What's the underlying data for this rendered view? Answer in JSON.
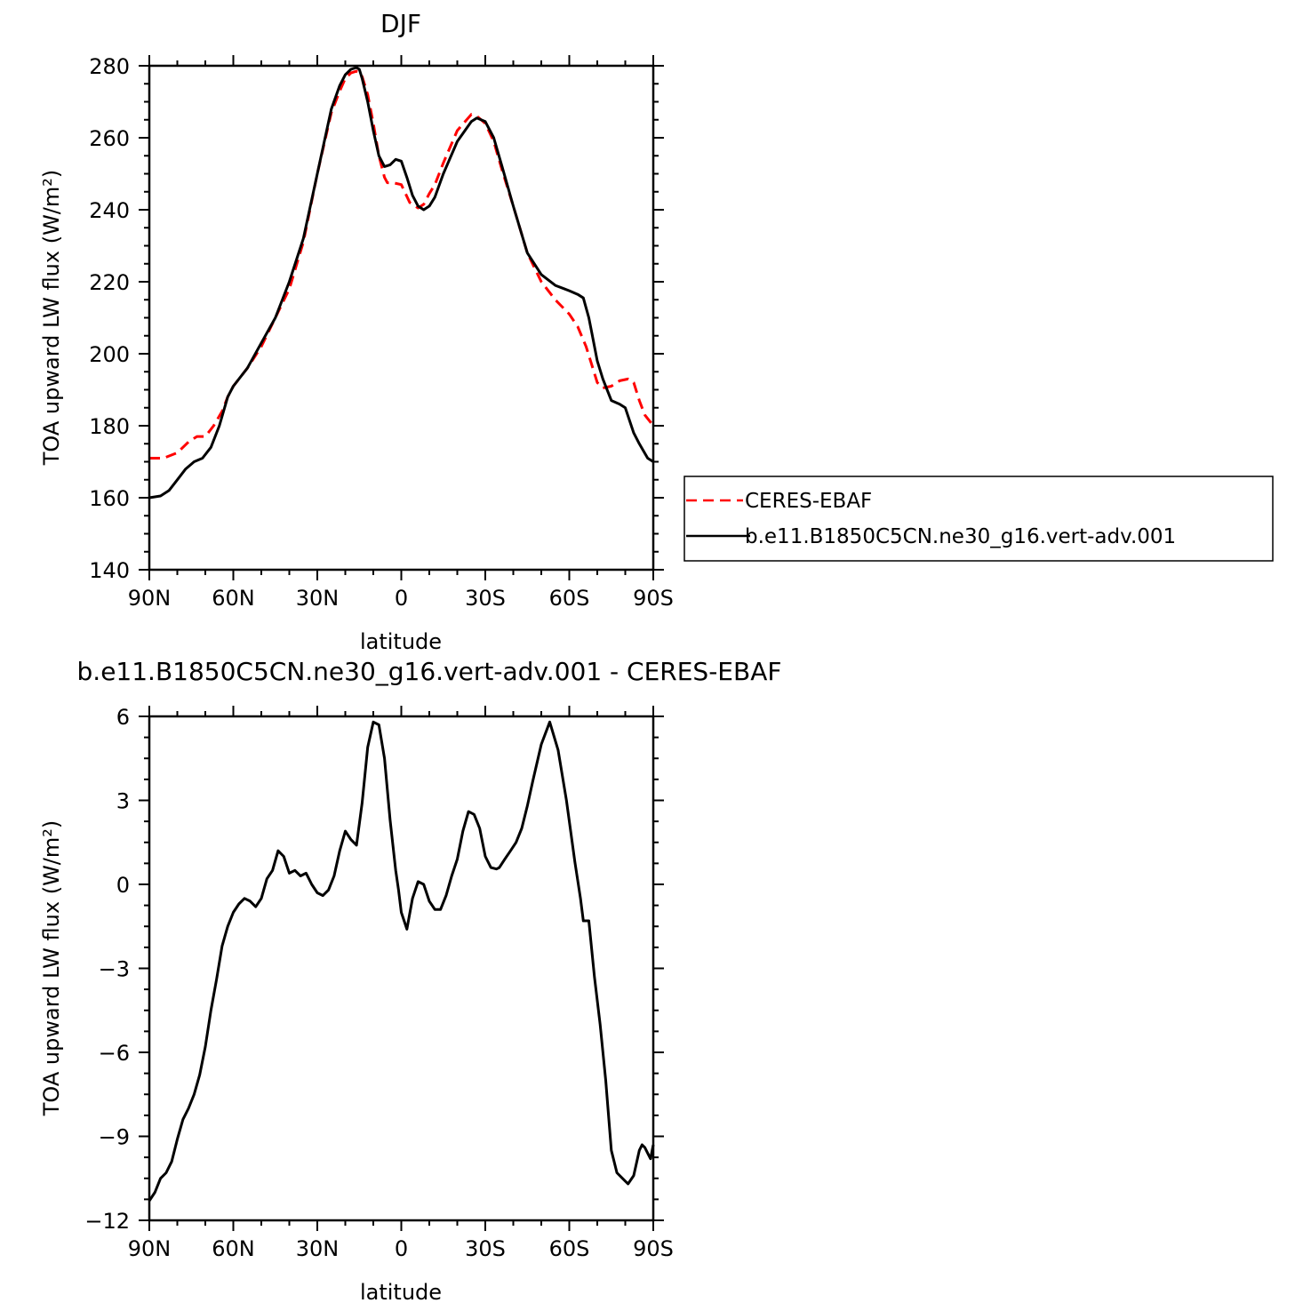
{
  "chart_data": [
    {
      "type": "line",
      "title": "DJF",
      "xlabel": "latitude",
      "ylabel": "TOA upward LW flux (W/m²)",
      "xlim": [
        90,
        -90
      ],
      "ylim": [
        140,
        280
      ],
      "x_ticks": [
        90,
        60,
        30,
        0,
        -30,
        -60,
        -90
      ],
      "x_tick_labels": [
        "90N",
        "60N",
        "30N",
        "0",
        "30S",
        "60S",
        "90S"
      ],
      "y_ticks": [
        140,
        160,
        180,
        200,
        220,
        240,
        260,
        280
      ],
      "y_tick_labels": [
        "140",
        "160",
        "180",
        "200",
        "220",
        "240",
        "260",
        "280"
      ],
      "grid": false,
      "legend": "right, outside plot",
      "series": [
        {
          "name": "CERES-EBAF",
          "color": "#ff0000",
          "dash": "dashed",
          "x": [
            90,
            85,
            80,
            76,
            73,
            70,
            67,
            64,
            62,
            60,
            55,
            50,
            45,
            40,
            35,
            30,
            25,
            22,
            20,
            18,
            16,
            15,
            14,
            12,
            10,
            8,
            6,
            5,
            3,
            0,
            -3,
            -6,
            -8,
            -10,
            -12,
            -15,
            -20,
            -25,
            -27,
            -30,
            -33,
            -36,
            -40,
            -45,
            -50,
            -55,
            -60,
            -63,
            -66,
            -68,
            -70,
            -72,
            -75,
            -78,
            -81,
            -83,
            -85,
            -87,
            -90
          ],
          "values": [
            171,
            171,
            172.5,
            175.5,
            177,
            177,
            180,
            184,
            188,
            191,
            196,
            202,
            210,
            218,
            231,
            250,
            267,
            273,
            276.5,
            278,
            278.5,
            278.3,
            277,
            272,
            264,
            255,
            249,
            247.5,
            247.5,
            247,
            242,
            240.5,
            241.5,
            244.5,
            247,
            253,
            262,
            266.5,
            266,
            264,
            259,
            251,
            241,
            228,
            220,
            215,
            211,
            207.5,
            202,
            197,
            192,
            190.5,
            191,
            192.5,
            193,
            192,
            187,
            183,
            180
          ]
        },
        {
          "name": "b.e11.B1850C5CN.ne30_g16.vert-adv.001",
          "color": "#000000",
          "dash": "solid",
          "x": [
            90,
            86,
            83,
            80,
            77,
            74,
            71,
            68,
            65,
            62,
            60,
            55,
            50,
            45,
            40,
            35,
            30,
            25,
            22,
            20,
            18,
            16,
            15,
            14,
            12,
            10,
            8,
            6,
            4,
            2,
            0,
            -2,
            -4,
            -6,
            -8,
            -10,
            -12,
            -15,
            -20,
            -25,
            -27,
            -30,
            -33,
            -36,
            -40,
            -45,
            -50,
            -55,
            -60,
            -63,
            -65,
            -67,
            -68,
            -70,
            -72,
            -75,
            -78,
            -80,
            -83,
            -85,
            -88,
            -90
          ],
          "values": [
            160,
            160.5,
            162,
            165,
            168,
            170,
            171,
            174,
            180,
            188,
            191,
            196,
            203,
            210,
            220,
            232,
            250,
            268,
            274.5,
            277.5,
            279,
            279.5,
            279,
            276.5,
            270,
            262,
            255,
            252,
            252.5,
            254,
            253.5,
            249,
            244,
            241,
            240,
            241,
            243.5,
            250,
            259,
            264.5,
            265.5,
            264.5,
            260,
            252,
            241,
            228,
            222,
            219,
            217.5,
            216.5,
            215.5,
            210,
            206,
            198,
            193,
            187,
            186,
            185,
            178,
            175,
            171,
            170
          ]
        }
      ]
    },
    {
      "type": "line",
      "title": "b.e11.B1850C5CN.ne30_g16.vert-adv.001 - CERES-EBAF",
      "xlabel": "latitude",
      "ylabel": "TOA upward LW flux (W/m²)",
      "xlim": [
        90,
        -90
      ],
      "ylim": [
        -12,
        6
      ],
      "x_ticks": [
        90,
        60,
        30,
        0,
        -30,
        -60,
        -90
      ],
      "x_tick_labels": [
        "90N",
        "60N",
        "30N",
        "0",
        "30S",
        "60S",
        "90S"
      ],
      "y_ticks": [
        -12,
        -9,
        -6,
        -3,
        0,
        3,
        6
      ],
      "y_tick_labels": [
        "−12",
        "−9",
        "−6",
        "−3",
        "0",
        "3",
        "6"
      ],
      "grid": false,
      "series": [
        {
          "color": "#000000",
          "dash": "solid",
          "x": [
            90,
            88,
            86,
            84,
            82,
            80,
            78,
            76,
            74,
            72,
            70,
            68,
            66,
            64,
            62,
            60,
            58,
            56,
            54,
            52,
            50,
            48,
            46,
            44,
            42,
            40,
            38,
            36,
            34,
            32,
            30,
            28,
            26,
            24,
            22,
            20,
            18,
            16,
            14,
            12,
            10,
            8,
            6,
            4,
            2,
            1,
            0,
            -2,
            -4,
            -6,
            -8,
            -10,
            -12,
            -14,
            -16,
            -18,
            -20,
            -22,
            -24,
            -26,
            -28,
            -30,
            -32,
            -34,
            -35,
            -37,
            -39,
            -41,
            -43,
            -45,
            -47,
            -50,
            -53,
            -56,
            -59,
            -62,
            -64,
            -65,
            -67,
            -69,
            -71,
            -73,
            -75,
            -77,
            -79,
            -81,
            -83,
            -85,
            -86,
            -87,
            -88,
            -89,
            -90
          ],
          "values": [
            -11.3,
            -11,
            -10.5,
            -10.3,
            -9.9,
            -9.1,
            -8.4,
            -8.0,
            -7.5,
            -6.8,
            -5.8,
            -4.5,
            -3.4,
            -2.2,
            -1.5,
            -1.0,
            -0.7,
            -0.5,
            -0.6,
            -0.8,
            -0.5,
            0.2,
            0.5,
            1.2,
            1.0,
            0.4,
            0.5,
            0.3,
            0.4,
            0.0,
            -0.3,
            -0.4,
            -0.2,
            0.3,
            1.2,
            1.9,
            1.6,
            1.4,
            2.9,
            4.9,
            5.8,
            5.7,
            4.5,
            2.3,
            0.5,
            -0.2,
            -1.0,
            -1.6,
            -0.5,
            0.1,
            0.0,
            -0.6,
            -0.9,
            -0.9,
            -0.4,
            0.3,
            0.9,
            1.9,
            2.6,
            2.5,
            2.0,
            1.0,
            0.6,
            0.55,
            0.6,
            0.9,
            1.2,
            1.5,
            2.0,
            2.8,
            3.7,
            5.0,
            5.8,
            4.8,
            3.0,
            0.8,
            -0.5,
            -1.3,
            -1.3,
            -3.3,
            -5.0,
            -7.0,
            -9.5,
            -10.3,
            -10.5,
            -10.7,
            -10.4,
            -9.5,
            -9.3,
            -9.4,
            -9.6,
            -9.8,
            -9.3
          ]
        }
      ]
    }
  ]
}
